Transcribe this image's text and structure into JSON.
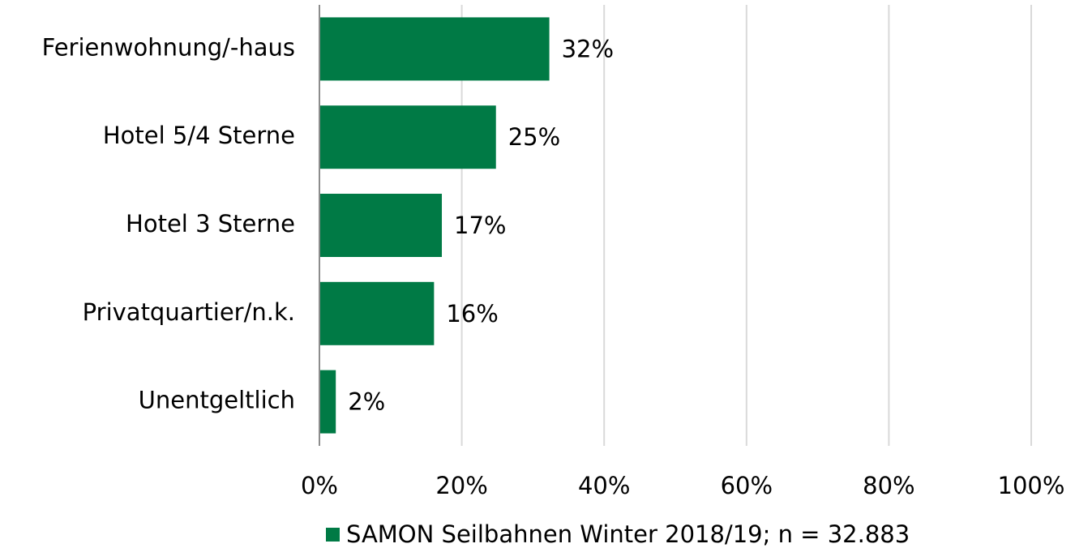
{
  "chart_data": {
    "type": "bar",
    "orientation": "horizontal",
    "categories": [
      "Ferienwohnung/-haus",
      "Hotel 5/4 Sterne",
      "Hotel 3 Sterne",
      "Privatquartier/n.k.",
      "Unentgeltlich"
    ],
    "series": [
      {
        "name": "SAMON Seilbahnen Winter 2018/19; n = 32.883",
        "color": "#007a45",
        "values": [
          32.3,
          24.8,
          17.2,
          16.1,
          2.3
        ],
        "value_labels": [
          "32%",
          "25%",
          "17%",
          "16%",
          "2%"
        ]
      }
    ],
    "xlim": [
      0,
      100
    ],
    "xticks": [
      {
        "value": 0,
        "label": "0%"
      },
      {
        "value": 20,
        "label": "20%"
      },
      {
        "value": 40,
        "label": "40%"
      },
      {
        "value": 60,
        "label": "60%"
      },
      {
        "value": 80,
        "label": "80%"
      },
      {
        "value": 100,
        "label": "100%"
      }
    ],
    "grid": true,
    "legend": "bottom"
  }
}
